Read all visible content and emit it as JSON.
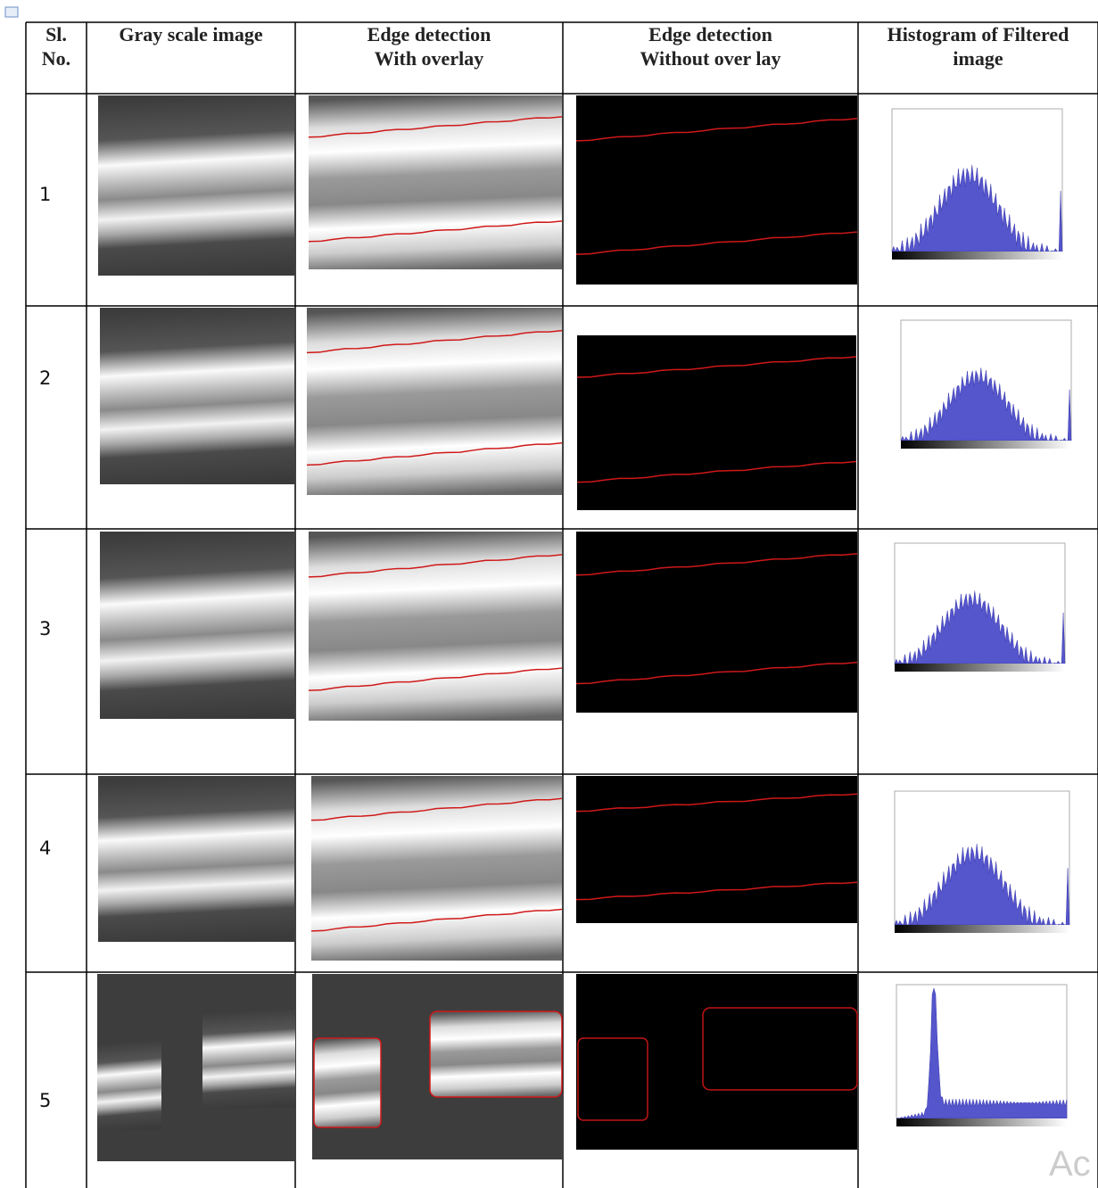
{
  "header": {
    "columns": [
      {
        "lines": [
          "Sl.",
          "No."
        ]
      },
      {
        "lines": [
          "Gray scale image"
        ]
      },
      {
        "lines": [
          "Edge detection",
          "With overlay"
        ]
      },
      {
        "lines": [
          "Edge detection",
          "Without over lay"
        ]
      },
      {
        "lines": [
          "Histogram of Filtered",
          "image"
        ]
      }
    ]
  },
  "table": {
    "rows": [
      "1",
      "2",
      "3",
      "4",
      "5"
    ]
  },
  "watermark": "Ac"
}
